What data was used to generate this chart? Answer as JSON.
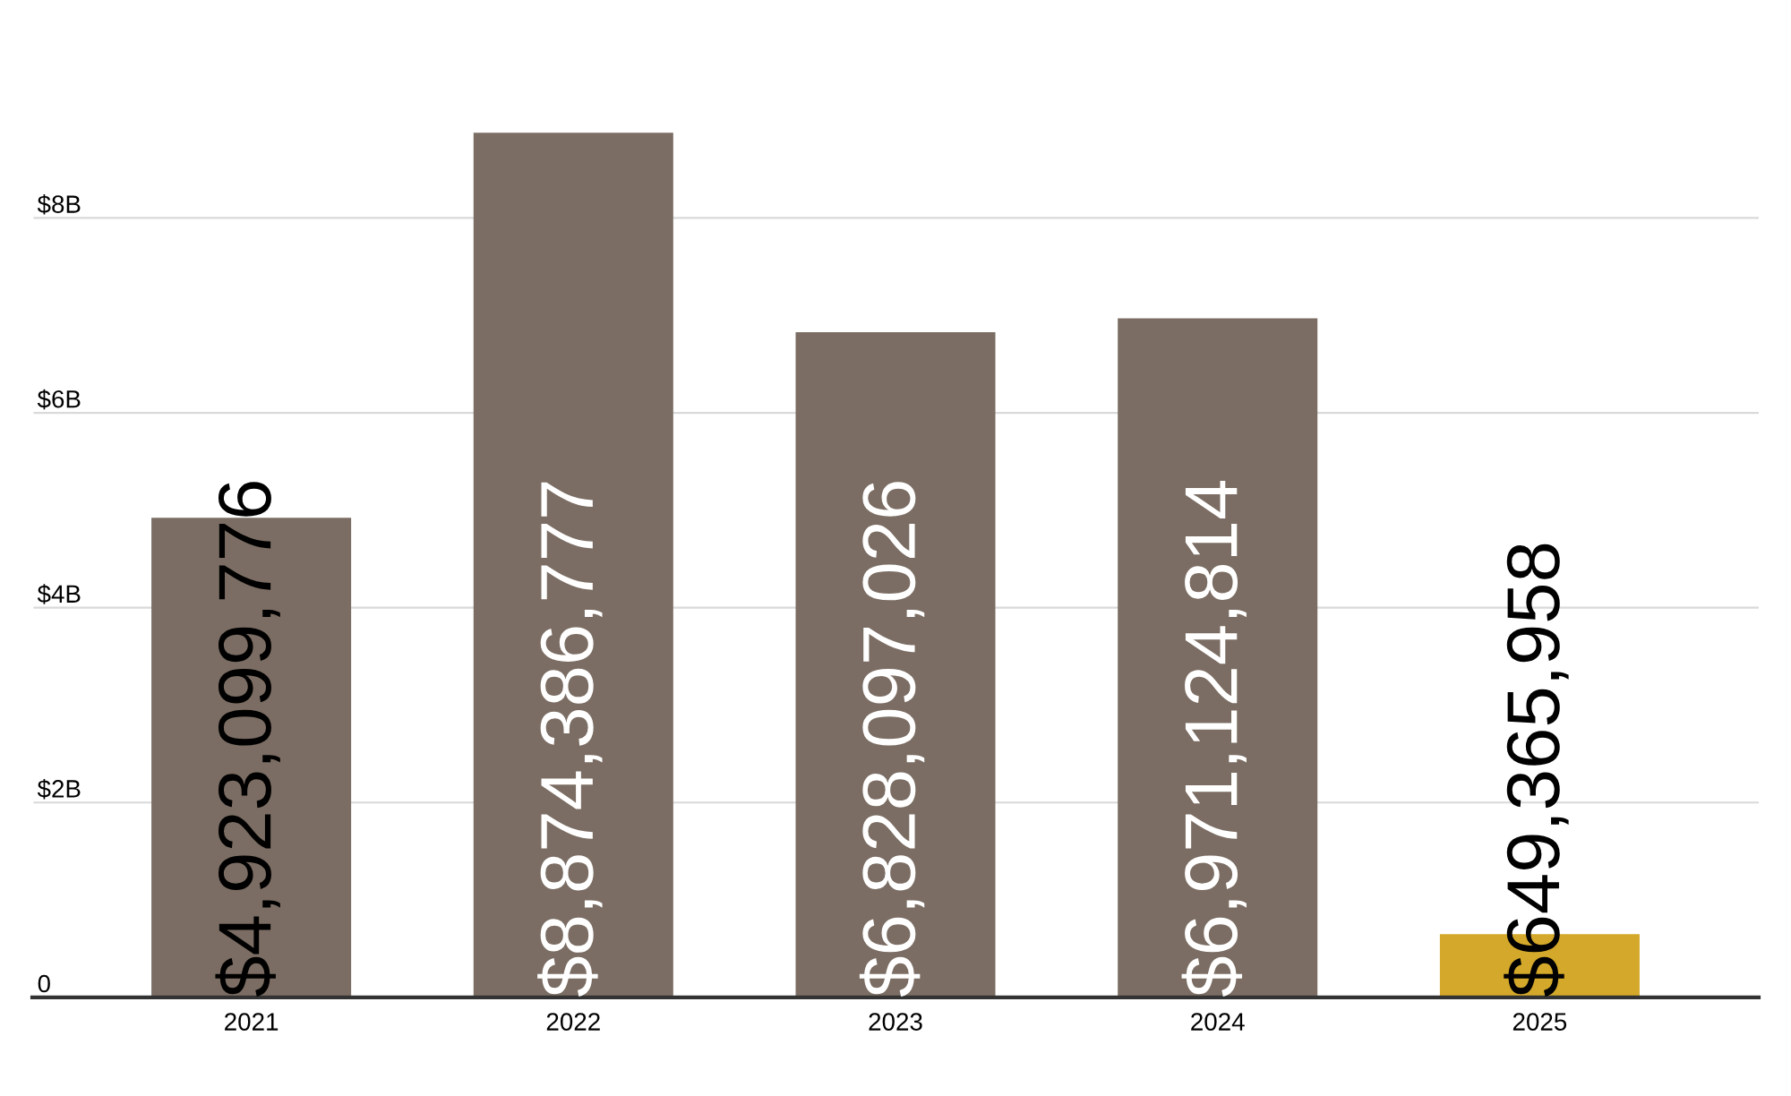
{
  "chart_data": {
    "type": "bar",
    "categories": [
      "2021",
      "2022",
      "2023",
      "2024",
      "2025"
    ],
    "values": [
      4923099776,
      8874386777,
      6828097026,
      6971124814,
      649365958
    ],
    "colors": [
      "#7b6d63",
      "#7b6d63",
      "#7b6d63",
      "#7b6d63",
      "#d4a82a"
    ],
    "value_labels": [
      "$4,923,099,776",
      "$8,874,386,777",
      "$6,828,097,026",
      "$6,971,124,814",
      "$649,365,958"
    ],
    "ylim": [
      0,
      9900000000
    ],
    "yticks": [
      {
        "value": 0,
        "label": "0"
      },
      {
        "value": 2000000000,
        "label": "$2B"
      },
      {
        "value": 4000000000,
        "label": "$4B"
      },
      {
        "value": 6000000000,
        "label": "$6B"
      },
      {
        "value": 8000000000,
        "label": "$8B"
      }
    ],
    "grid": "y",
    "legend": false
  }
}
